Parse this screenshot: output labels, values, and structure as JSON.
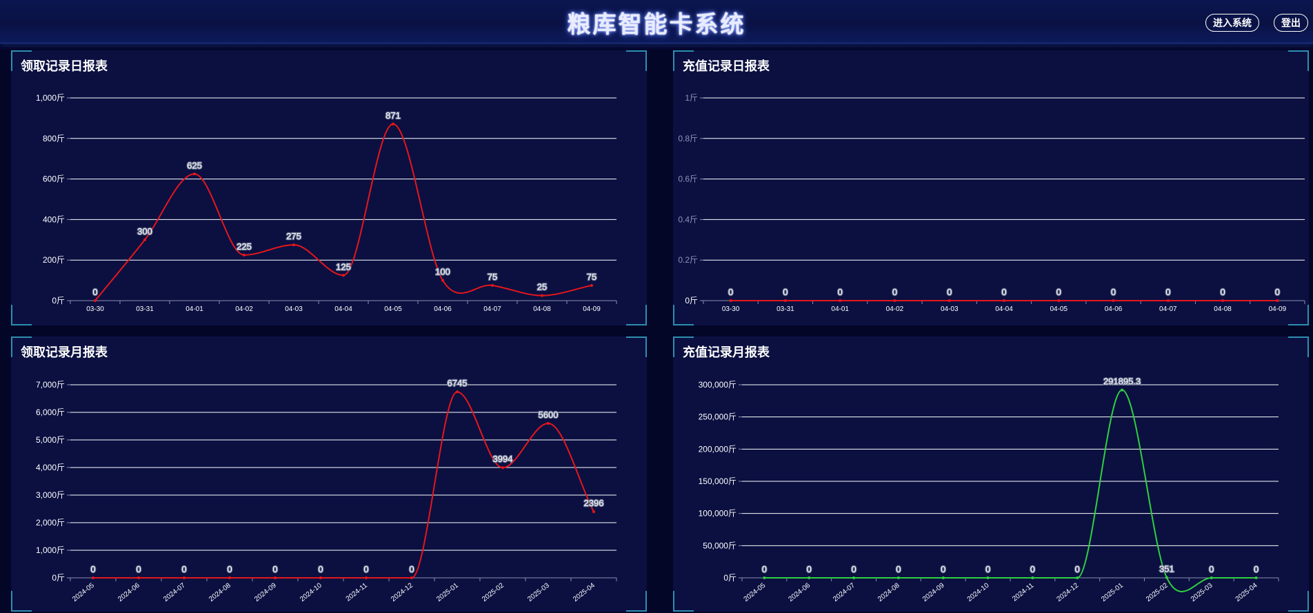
{
  "header": {
    "title": "粮库智能卡系统",
    "enter_label": "进入系统",
    "logout_label": "登出"
  },
  "panels": {
    "p1": {
      "title": "领取记录日报表"
    },
    "p2": {
      "title": "充值记录日报表"
    },
    "p3": {
      "title": "领取记录月报表"
    },
    "p4": {
      "title": "充值记录月报表"
    }
  },
  "chart_data": [
    {
      "type": "line",
      "title": "领取记录日报表",
      "categories": [
        "03-30",
        "03-31",
        "04-01",
        "04-02",
        "04-03",
        "04-04",
        "04-05",
        "04-06",
        "04-07",
        "04-08",
        "04-09"
      ],
      "values": [
        0,
        300,
        625,
        225,
        275,
        125,
        871,
        100,
        75,
        25,
        75
      ],
      "yticks": [
        "0斤",
        "200斤",
        "400斤",
        "600斤",
        "800斤",
        "1,000斤"
      ],
      "ylim": [
        0,
        1000
      ],
      "color": "#e8161b",
      "grid": true
    },
    {
      "type": "line",
      "title": "充值记录日报表",
      "categories": [
        "03-30",
        "03-31",
        "04-01",
        "04-02",
        "04-03",
        "04-04",
        "04-05",
        "04-06",
        "04-07",
        "04-08",
        "04-09"
      ],
      "values": [
        0,
        0,
        0,
        0,
        0,
        0,
        0,
        0,
        0,
        0,
        0
      ],
      "yticks": [
        "0斤",
        "0.2斤",
        "0.4斤",
        "0.6斤",
        "0.8斤",
        "1斤"
      ],
      "ylim": [
        0,
        1
      ],
      "color": "#e8161b",
      "grid": true
    },
    {
      "type": "line",
      "title": "领取记录月报表",
      "categories": [
        "2024-05",
        "2024-06",
        "2024-07",
        "2024-08",
        "2024-09",
        "2024-10",
        "2024-11",
        "2024-12",
        "2025-01",
        "2025-02",
        "2025-03",
        "2025-04"
      ],
      "values": [
        0,
        0,
        0,
        0,
        0,
        0,
        0,
        0,
        6745,
        3994,
        5600,
        2396
      ],
      "yticks": [
        "0斤",
        "1,000斤",
        "2,000斤",
        "3,000斤",
        "4,000斤",
        "5,000斤",
        "6,000斤",
        "7,000斤"
      ],
      "ylim": [
        0,
        7000
      ],
      "color": "#e8161b",
      "grid": true
    },
    {
      "type": "line",
      "title": "充值记录月报表",
      "categories": [
        "2024-05",
        "2024-06",
        "2024-07",
        "2024-08",
        "2024-09",
        "2024-10",
        "2024-11",
        "2024-12",
        "2025-01",
        "2025-02",
        "2025-03",
        "2025-04"
      ],
      "values": [
        0,
        0,
        0,
        0,
        0,
        0,
        0,
        0,
        291895.3,
        351,
        0,
        0
      ],
      "yticks": [
        "0斤",
        "50,000斤",
        "100,000斤",
        "150,000斤",
        "200,000斤",
        "250,000斤",
        "300,000斤"
      ],
      "ylim": [
        0,
        300000
      ],
      "color": "#2fd13f",
      "grid": true
    }
  ]
}
